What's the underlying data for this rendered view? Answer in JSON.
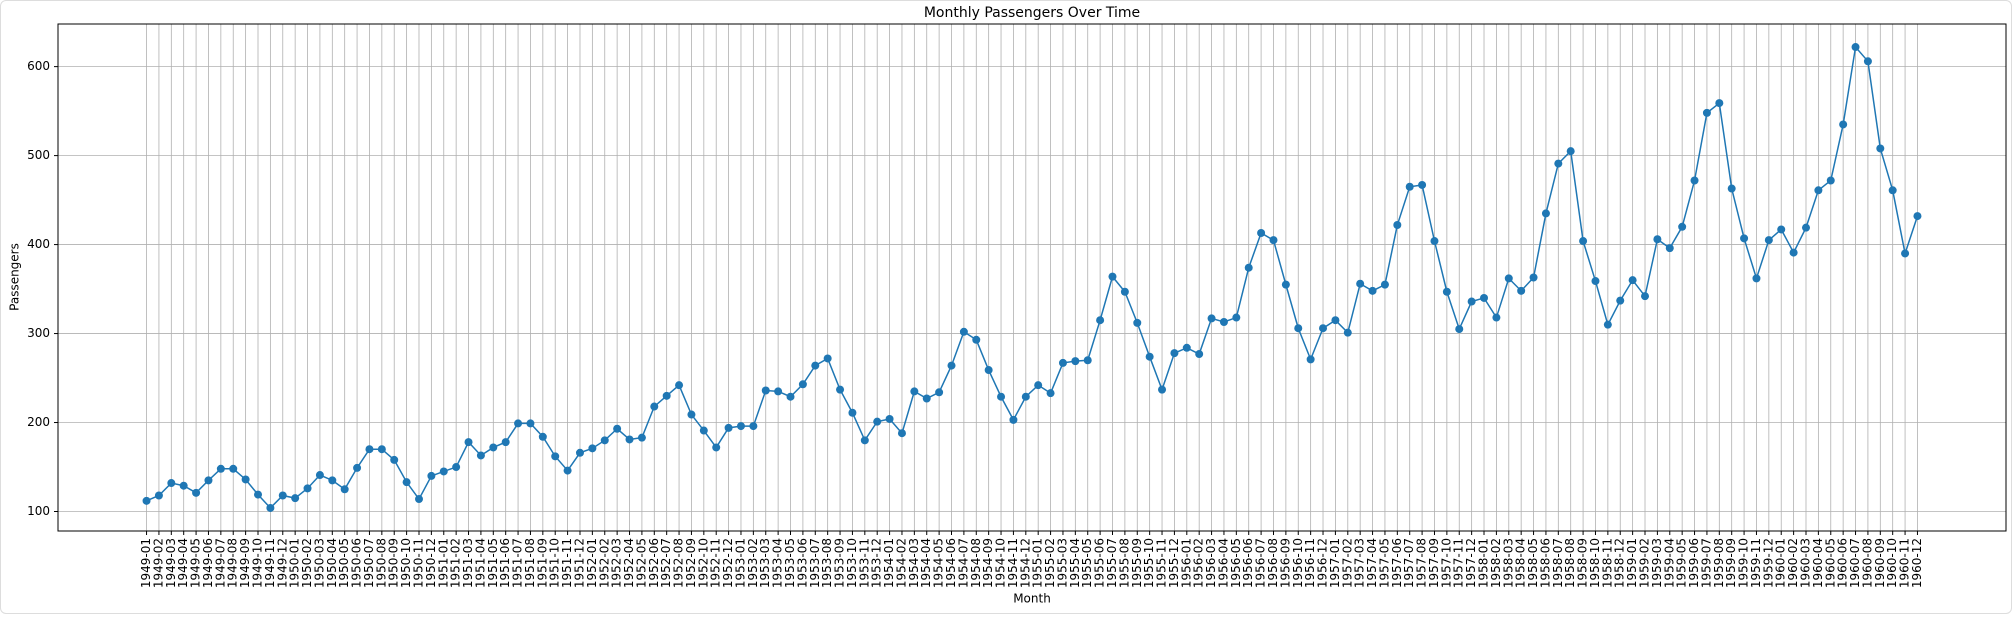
{
  "chart_data": {
    "type": "line",
    "title": "Monthly Passengers Over Time",
    "x_label": "Month",
    "y_label": "Passengers",
    "categories": [
      "1949-01",
      "1949-02",
      "1949-03",
      "1949-04",
      "1949-05",
      "1949-06",
      "1949-07",
      "1949-08",
      "1949-09",
      "1949-10",
      "1949-11",
      "1949-12",
      "1950-01",
      "1950-02",
      "1950-03",
      "1950-04",
      "1950-05",
      "1950-06",
      "1950-07",
      "1950-08",
      "1950-09",
      "1950-10",
      "1950-11",
      "1950-12",
      "1951-01",
      "1951-02",
      "1951-03",
      "1951-04",
      "1951-05",
      "1951-06",
      "1951-07",
      "1951-08",
      "1951-09",
      "1951-10",
      "1951-11",
      "1951-12",
      "1952-01",
      "1952-02",
      "1952-03",
      "1952-04",
      "1952-05",
      "1952-06",
      "1952-07",
      "1952-08",
      "1952-09",
      "1952-10",
      "1952-11",
      "1952-12",
      "1953-01",
      "1953-02",
      "1953-03",
      "1953-04",
      "1953-05",
      "1953-06",
      "1953-07",
      "1953-08",
      "1953-09",
      "1953-10",
      "1953-11",
      "1953-12",
      "1954-01",
      "1954-02",
      "1954-03",
      "1954-04",
      "1954-05",
      "1954-06",
      "1954-07",
      "1954-08",
      "1954-09",
      "1954-10",
      "1954-11",
      "1954-12",
      "1955-01",
      "1955-02",
      "1955-03",
      "1955-04",
      "1955-05",
      "1955-06",
      "1955-07",
      "1955-08",
      "1955-09",
      "1955-10",
      "1955-11",
      "1955-12",
      "1956-01",
      "1956-02",
      "1956-03",
      "1956-04",
      "1956-05",
      "1956-06",
      "1956-07",
      "1956-08",
      "1956-09",
      "1956-10",
      "1956-11",
      "1956-12",
      "1957-01",
      "1957-02",
      "1957-03",
      "1957-04",
      "1957-05",
      "1957-06",
      "1957-07",
      "1957-08",
      "1957-09",
      "1957-10",
      "1957-11",
      "1957-12",
      "1958-01",
      "1958-02",
      "1958-03",
      "1958-04",
      "1958-05",
      "1958-06",
      "1958-07",
      "1958-08",
      "1958-09",
      "1958-10",
      "1958-11",
      "1958-12",
      "1959-01",
      "1959-02",
      "1959-03",
      "1959-04",
      "1959-05",
      "1959-06",
      "1959-07",
      "1959-08",
      "1959-09",
      "1959-10",
      "1959-11",
      "1959-12",
      "1960-01",
      "1960-02",
      "1960-03",
      "1960-04",
      "1960-05",
      "1960-06",
      "1960-07",
      "1960-08",
      "1960-09",
      "1960-10",
      "1960-11",
      "1960-12"
    ],
    "values": [
      112,
      118,
      132,
      129,
      121,
      135,
      148,
      148,
      136,
      119,
      104,
      118,
      115,
      126,
      141,
      135,
      125,
      149,
      170,
      170,
      158,
      133,
      114,
      140,
      145,
      150,
      178,
      163,
      172,
      178,
      199,
      199,
      184,
      162,
      146,
      166,
      171,
      180,
      193,
      181,
      183,
      218,
      230,
      242,
      209,
      191,
      172,
      194,
      196,
      196,
      236,
      235,
      229,
      243,
      264,
      272,
      237,
      211,
      180,
      201,
      204,
      188,
      235,
      227,
      234,
      264,
      302,
      293,
      259,
      229,
      203,
      229,
      242,
      233,
      267,
      269,
      270,
      315,
      364,
      347,
      312,
      274,
      237,
      278,
      284,
      277,
      317,
      313,
      318,
      374,
      413,
      405,
      355,
      306,
      271,
      306,
      315,
      301,
      356,
      348,
      355,
      422,
      465,
      467,
      404,
      347,
      305,
      336,
      340,
      318,
      362,
      348,
      363,
      435,
      491,
      505,
      404,
      359,
      310,
      337,
      360,
      342,
      406,
      396,
      420,
      472,
      548,
      559,
      463,
      407,
      362,
      405,
      417,
      391,
      419,
      461,
      472,
      535,
      622,
      606,
      508,
      461,
      390,
      432
    ],
    "color": "#1f77b4",
    "markers": true,
    "grid": true,
    "ylim": [
      78.1,
      647.9
    ],
    "yticks": [
      100,
      200,
      300,
      400,
      500,
      600
    ]
  }
}
